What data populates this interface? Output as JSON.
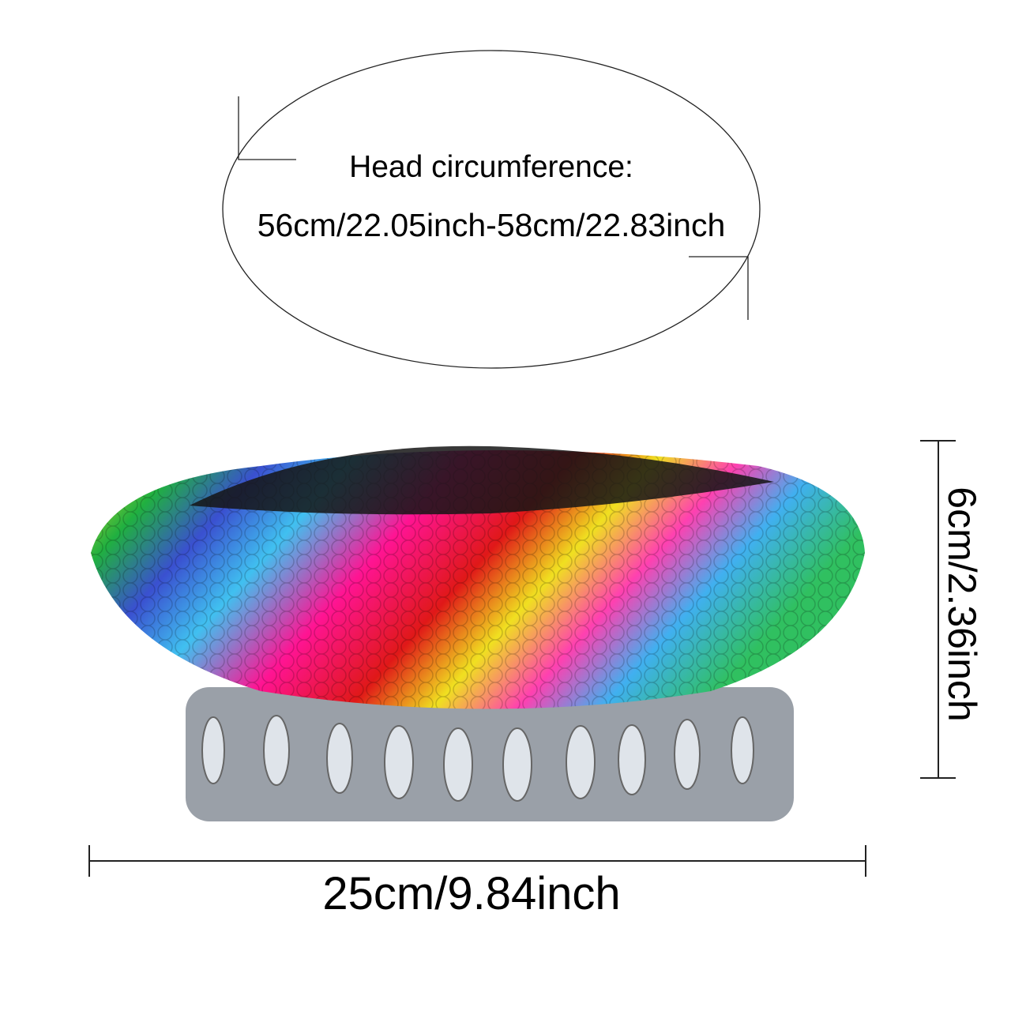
{
  "head_circumference": {
    "label": "Head circumference:",
    "value": "56cm/22.05inch-58cm/22.83inch"
  },
  "height": {
    "value": "6cm/2.36inch"
  },
  "width": {
    "value": "25cm/9.84inch"
  },
  "product": {
    "icon": "sequin-beret-hat",
    "colors": [
      "#e8e800",
      "#ff1493",
      "#e01010",
      "#1aa83a",
      "#2060e0",
      "#7020c0",
      "#40c0f0",
      "#ff8c00",
      "#111111"
    ]
  }
}
